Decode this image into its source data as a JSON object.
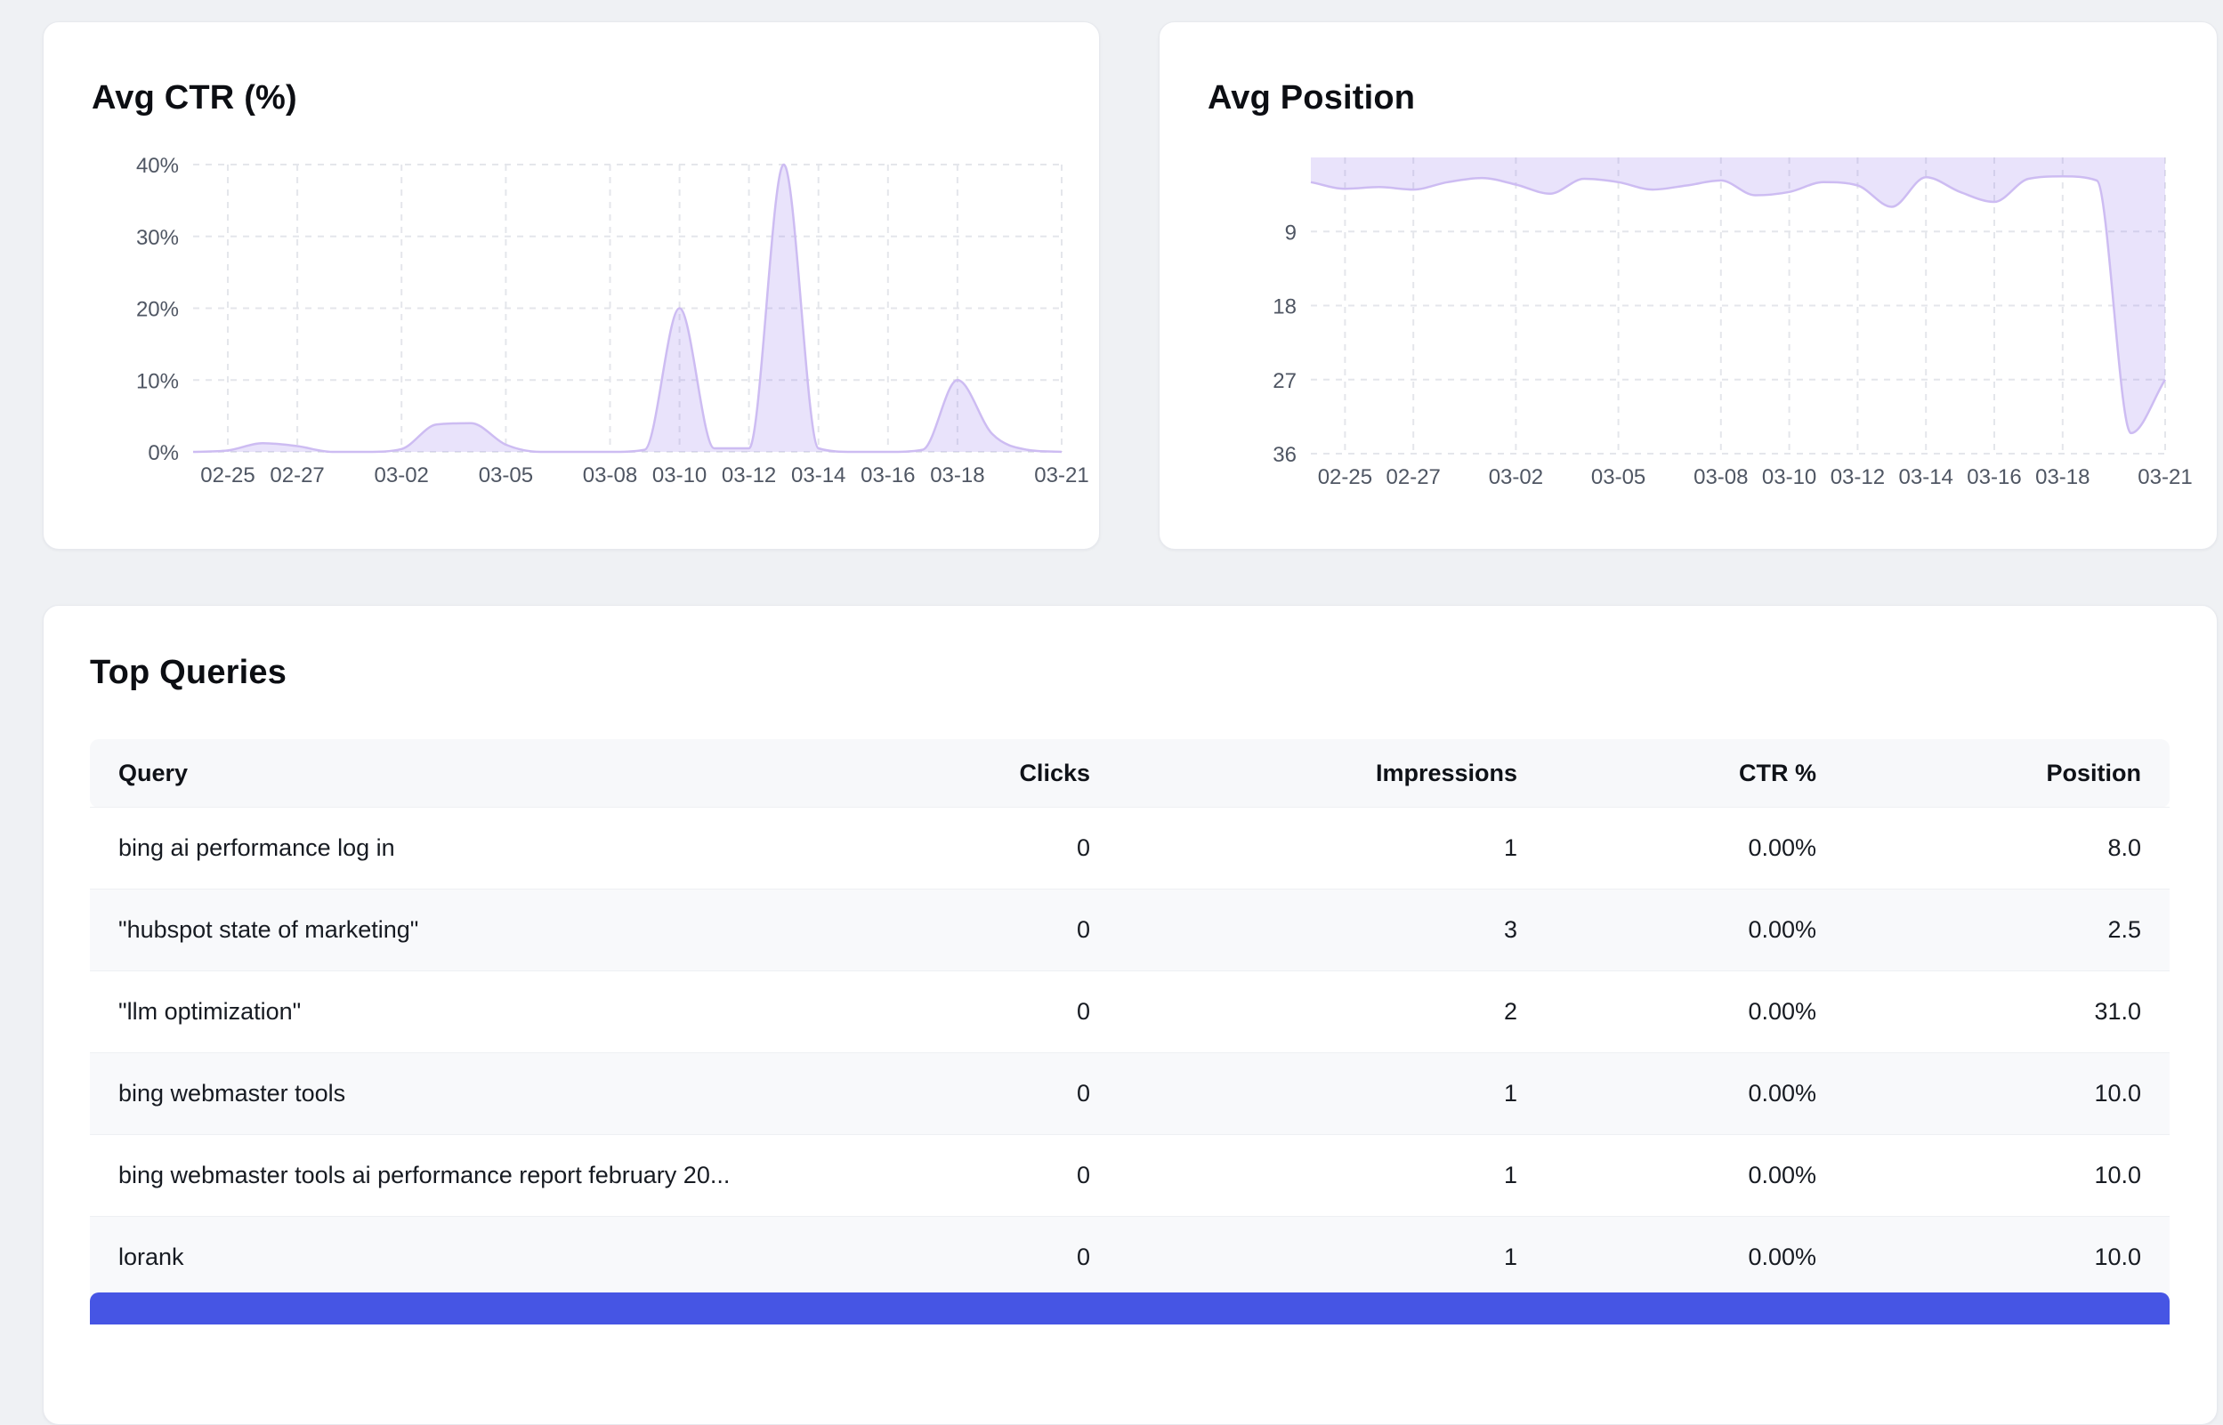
{
  "chart_data": [
    {
      "type": "area",
      "title": "Avg CTR (%)",
      "x": [
        "02-24",
        "02-25",
        "02-26",
        "02-27",
        "02-28",
        "03-01",
        "03-02",
        "03-03",
        "03-04",
        "03-05",
        "03-06",
        "03-07",
        "03-08",
        "03-09",
        "03-10",
        "03-11",
        "03-12",
        "03-13",
        "03-14",
        "03-15",
        "03-16",
        "03-17",
        "03-18",
        "03-19",
        "03-20",
        "03-21"
      ],
      "values": [
        0,
        0.2,
        1.2,
        0.8,
        0,
        0,
        0.4,
        3.8,
        4.0,
        1.0,
        0,
        0,
        0,
        0.3,
        20,
        0.5,
        0.5,
        40,
        0.5,
        0,
        0,
        0.3,
        10,
        2.5,
        0.3,
        0
      ],
      "ylim": [
        0,
        40
      ],
      "invert_y": false,
      "fill_to": "bottom",
      "ytick_values": [
        0,
        10,
        20,
        30,
        40
      ],
      "ytick_labels": [
        "0%",
        "10%",
        "20%",
        "30%",
        "40%"
      ],
      "xtick_labels": [
        "02-25",
        "02-27",
        "03-02",
        "03-05",
        "03-08",
        "03-10",
        "03-12",
        "03-14",
        "03-16",
        "03-18",
        "03-21"
      ],
      "grid": "dashed",
      "legend": "none",
      "fill": "rgba(147,114,236,0.20)",
      "stroke": "#cdbcf2"
    },
    {
      "type": "area",
      "title": "Avg Position",
      "x": [
        "02-24",
        "02-25",
        "02-26",
        "02-27",
        "02-28",
        "03-01",
        "03-02",
        "03-03",
        "03-04",
        "03-05",
        "03-06",
        "03-07",
        "03-08",
        "03-09",
        "03-10",
        "03-11",
        "03-12",
        "03-13",
        "03-14",
        "03-15",
        "03-16",
        "03-17",
        "03-18",
        "03-19",
        "03-20",
        "03-21"
      ],
      "values": [
        3.0,
        3.8,
        3.6,
        3.9,
        3.0,
        2.5,
        3.3,
        4.4,
        2.6,
        3.0,
        3.9,
        3.4,
        2.8,
        4.6,
        4.2,
        3.0,
        3.4,
        6.0,
        2.4,
        4.2,
        5.4,
        2.6,
        2.3,
        2.8,
        33.5,
        27.0
      ],
      "ylim": [
        0,
        36
      ],
      "invert_y": true,
      "fill_to": "top",
      "ytick_values": [
        9,
        18,
        27,
        36
      ],
      "ytick_labels": [
        "9",
        "18",
        "27",
        "36"
      ],
      "xtick_labels": [
        "02-25",
        "02-27",
        "03-02",
        "03-05",
        "03-08",
        "03-10",
        "03-12",
        "03-14",
        "03-16",
        "03-18",
        "03-21"
      ],
      "grid": "dashed",
      "legend": "none",
      "fill": "rgba(147,114,236,0.20)",
      "stroke": "#cdbcf2"
    }
  ],
  "table": {
    "title": "Top Queries",
    "columns": [
      {
        "key": "query",
        "label": "Query",
        "align": "left"
      },
      {
        "key": "clicks",
        "label": "Clicks",
        "align": "right"
      },
      {
        "key": "impressions",
        "label": "Impressions",
        "align": "right"
      },
      {
        "key": "ctr",
        "label": "CTR %",
        "align": "right"
      },
      {
        "key": "position",
        "label": "Position",
        "align": "right"
      }
    ],
    "rows": [
      [
        "bing ai performance log in",
        "0",
        "1",
        "0.00%",
        "8.0"
      ],
      [
        "\"hubspot state of marketing\"",
        "0",
        "3",
        "0.00%",
        "2.5"
      ],
      [
        "\"llm optimization\"",
        "0",
        "2",
        "0.00%",
        "31.0"
      ],
      [
        "bing webmaster tools",
        "0",
        "1",
        "0.00%",
        "10.0"
      ],
      [
        "bing webmaster tools ai performance report february 20...",
        "0",
        "1",
        "0.00%",
        "10.0"
      ],
      [
        "lorank",
        "0",
        "1",
        "0.00%",
        "10.0"
      ]
    ]
  },
  "colors": {
    "page_background": "#eff1f4",
    "chart_fill": "rgba(147,114,236,0.20)",
    "chart_stroke": "#cdbcf2",
    "grid_line": "#e4e6eb",
    "clipped_bar": "#4655e4"
  }
}
